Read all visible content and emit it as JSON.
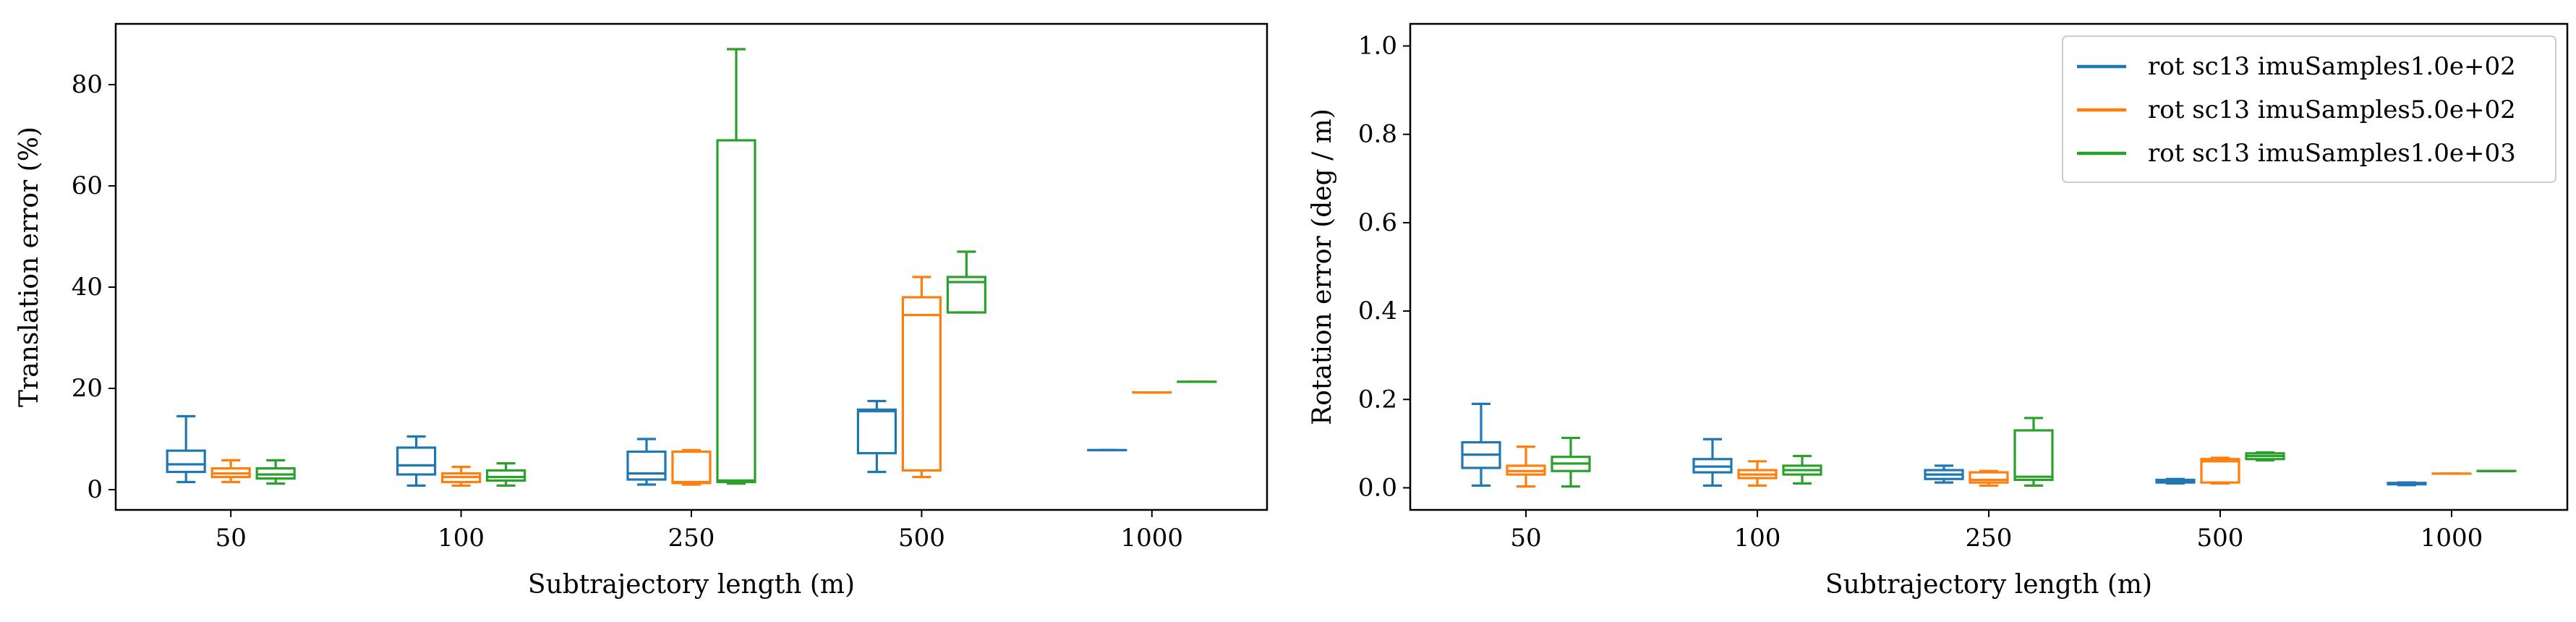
{
  "colors": {
    "series": [
      "#1f77b4",
      "#ff7f0e",
      "#2ca02c"
    ],
    "axes": "#000000",
    "background": "#ffffff"
  },
  "chart_data": [
    {
      "type": "box",
      "title": "",
      "xlabel": "Subtrajectory length (m)",
      "ylabel": "Translation error (%)",
      "categories": [
        "50",
        "100",
        "250",
        "500",
        "1000"
      ],
      "ylim": [
        -4,
        92
      ],
      "yticks": [
        "0",
        "20",
        "40",
        "60",
        "80"
      ],
      "grid": false,
      "legend": null,
      "series": [
        {
          "boxes": [
            {
              "whislo": 1.5,
              "q1": 3.5,
              "med": 5.0,
              "q3": 7.7,
              "whishi": 14.5
            },
            {
              "whislo": 0.8,
              "q1": 3.0,
              "med": 4.8,
              "q3": 8.3,
              "whishi": 10.5
            },
            {
              "whislo": 1.0,
              "q1": 2.0,
              "med": 3.2,
              "q3": 7.5,
              "whishi": 10.0
            },
            {
              "whislo": 3.5,
              "q1": 7.2,
              "med": 15.5,
              "q3": 15.8,
              "whishi": 17.5
            },
            {
              "whislo": 7.8,
              "q1": 7.8,
              "med": 7.8,
              "q3": 7.8,
              "whishi": 7.8
            }
          ]
        },
        {
          "boxes": [
            {
              "whislo": 1.5,
              "q1": 2.5,
              "med": 3.2,
              "q3": 4.2,
              "whishi": 5.8
            },
            {
              "whislo": 0.8,
              "q1": 1.5,
              "med": 2.5,
              "q3": 3.2,
              "whishi": 4.5
            },
            {
              "whislo": 1.0,
              "q1": 1.3,
              "med": 1.5,
              "q3": 7.5,
              "whishi": 7.8
            },
            {
              "whislo": 2.5,
              "q1": 3.8,
              "med": 34.5,
              "q3": 38.0,
              "whishi": 42.0
            },
            {
              "whislo": 19.2,
              "q1": 19.2,
              "med": 19.2,
              "q3": 19.2,
              "whishi": 19.2
            }
          ]
        },
        {
          "boxes": [
            {
              "whislo": 1.2,
              "q1": 2.2,
              "med": 3.0,
              "q3": 4.2,
              "whishi": 5.8
            },
            {
              "whislo": 0.8,
              "q1": 1.8,
              "med": 2.5,
              "q3": 3.8,
              "whishi": 5.2
            },
            {
              "whislo": 1.2,
              "q1": 1.5,
              "med": 1.8,
              "q3": 69.0,
              "whishi": 87.0
            },
            {
              "whislo": 35.0,
              "q1": 35.0,
              "med": 41.0,
              "q3": 42.0,
              "whishi": 47.0
            },
            {
              "whislo": 21.3,
              "q1": 21.3,
              "med": 21.3,
              "q3": 21.3,
              "whishi": 21.3
            }
          ]
        }
      ]
    },
    {
      "type": "box",
      "title": "",
      "xlabel": "Subtrajectory length (m)",
      "ylabel": "Rotation error (deg / m)",
      "categories": [
        "50",
        "100",
        "250",
        "500",
        "1000"
      ],
      "ylim": [
        -0.05,
        1.05
      ],
      "yticks": [
        "0.0",
        "0.2",
        "0.4",
        "0.6",
        "0.8",
        "1.0"
      ],
      "grid": false,
      "legend": "top-right",
      "series": [
        {
          "name": "rot sc13 imuSamples1.0e+02",
          "boxes": [
            {
              "whislo": 0.005,
              "q1": 0.045,
              "med": 0.075,
              "q3": 0.103,
              "whishi": 0.19
            },
            {
              "whislo": 0.005,
              "q1": 0.035,
              "med": 0.048,
              "q3": 0.065,
              "whishi": 0.11
            },
            {
              "whislo": 0.012,
              "q1": 0.02,
              "med": 0.03,
              "q3": 0.04,
              "whishi": 0.05
            },
            {
              "whislo": 0.01,
              "q1": 0.012,
              "med": 0.015,
              "q3": 0.018,
              "whishi": 0.02
            },
            {
              "whislo": 0.006,
              "q1": 0.008,
              "med": 0.01,
              "q3": 0.011,
              "whishi": 0.012
            }
          ]
        },
        {
          "name": "rot sc13 imuSamples5.0e+02",
          "boxes": [
            {
              "whislo": 0.003,
              "q1": 0.03,
              "med": 0.038,
              "q3": 0.05,
              "whishi": 0.093
            },
            {
              "whislo": 0.005,
              "q1": 0.022,
              "med": 0.03,
              "q3": 0.04,
              "whishi": 0.06
            },
            {
              "whislo": 0.005,
              "q1": 0.012,
              "med": 0.018,
              "q3": 0.035,
              "whishi": 0.038
            },
            {
              "whislo": 0.01,
              "q1": 0.012,
              "med": 0.06,
              "q3": 0.065,
              "whishi": 0.068
            },
            {
              "whislo": 0.032,
              "q1": 0.032,
              "med": 0.032,
              "q3": 0.032,
              "whishi": 0.032
            }
          ]
        },
        {
          "name": "rot sc13 imuSamples1.0e+03",
          "boxes": [
            {
              "whislo": 0.003,
              "q1": 0.038,
              "med": 0.055,
              "q3": 0.07,
              "whishi": 0.113
            },
            {
              "whislo": 0.01,
              "q1": 0.03,
              "med": 0.04,
              "q3": 0.05,
              "whishi": 0.072
            },
            {
              "whislo": 0.005,
              "q1": 0.018,
              "med": 0.025,
              "q3": 0.13,
              "whishi": 0.158
            },
            {
              "whislo": 0.062,
              "q1": 0.065,
              "med": 0.072,
              "q3": 0.078,
              "whishi": 0.08
            },
            {
              "whislo": 0.038,
              "q1": 0.038,
              "med": 0.038,
              "q3": 0.038,
              "whishi": 0.038
            }
          ]
        }
      ]
    }
  ]
}
